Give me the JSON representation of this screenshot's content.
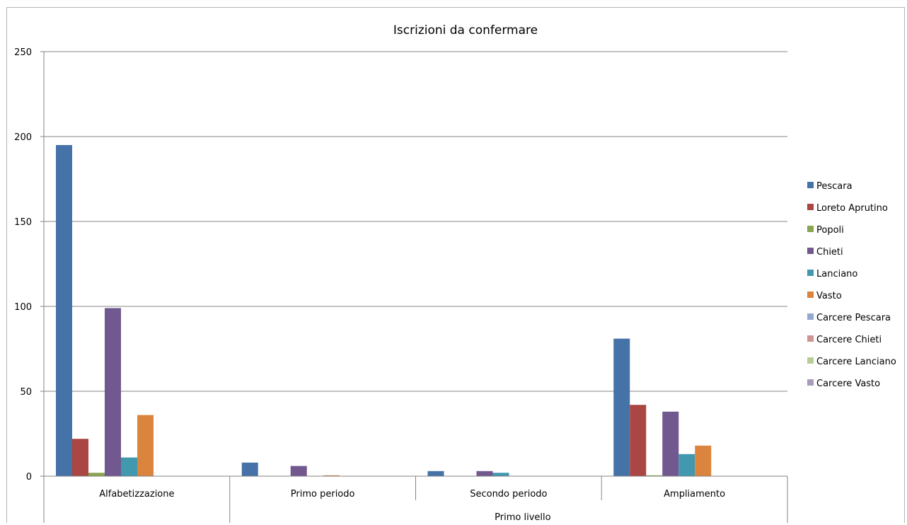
{
  "chart_data": {
    "type": "bar",
    "title": "Iscrizioni da confermare",
    "categories": [
      "Alfabetizzazione",
      "Primo periodo",
      "Secondo periodo",
      "Ampliamento"
    ],
    "group_label": "Primo livello",
    "group_spans": [
      1,
      2
    ],
    "ylim": [
      0,
      250
    ],
    "yticks": [
      0,
      50,
      100,
      150,
      200,
      250
    ],
    "grid": true,
    "legend_position": "right",
    "series": [
      {
        "name": "Pescara",
        "color": "#4572a7",
        "values": [
          195,
          8,
          3,
          81
        ]
      },
      {
        "name": "Loreto Aprutino",
        "color": "#aa4643",
        "values": [
          22,
          0,
          0,
          42
        ]
      },
      {
        "name": "Popoli",
        "color": "#89a54e",
        "values": [
          2,
          0,
          0,
          0.5
        ]
      },
      {
        "name": "Chieti",
        "color": "#71588f",
        "values": [
          99,
          6,
          3,
          38
        ]
      },
      {
        "name": "Lanciano",
        "color": "#4198af",
        "values": [
          11,
          0,
          2,
          13
        ]
      },
      {
        "name": "Vasto",
        "color": "#db843d",
        "values": [
          36,
          0.5,
          0,
          18
        ]
      },
      {
        "name": "Carcere Pescara",
        "color": "#93a9cf",
        "values": [
          0,
          0,
          0,
          0
        ]
      },
      {
        "name": "Carcere Chieti",
        "color": "#d19392",
        "values": [
          0,
          0,
          0,
          0
        ]
      },
      {
        "name": "Carcere Lanciano",
        "color": "#b9cd96",
        "values": [
          0,
          0,
          0,
          0
        ]
      },
      {
        "name": "Carcere Vasto",
        "color": "#a99bbd",
        "values": [
          0,
          0,
          0,
          0
        ]
      }
    ]
  }
}
